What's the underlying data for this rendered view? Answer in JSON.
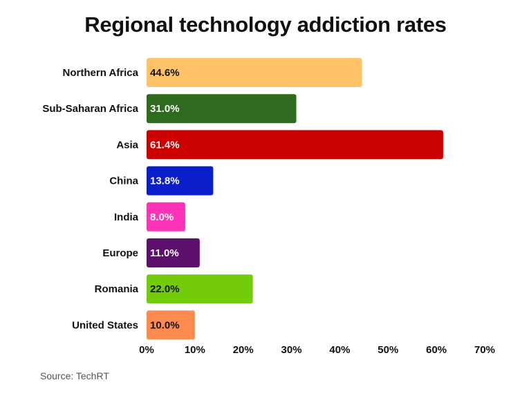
{
  "chart_data": {
    "type": "bar",
    "orientation": "horizontal",
    "title": "Regional technology addiction rates",
    "xlabel": "",
    "ylabel": "",
    "xlim": [
      0,
      70
    ],
    "ticks": [
      0,
      10,
      20,
      30,
      40,
      50,
      60,
      70
    ],
    "tick_labels": [
      "0%",
      "10%",
      "20%",
      "30%",
      "40%",
      "50%",
      "60%",
      "70%"
    ],
    "grid": false,
    "categories": [
      "Northern Africa",
      "Sub-Saharan Africa",
      "Asia",
      "China",
      "India",
      "Europe",
      "Romania",
      "United States"
    ],
    "values": [
      44.6,
      31.0,
      61.4,
      13.8,
      8.0,
      11.0,
      22.0,
      10.0
    ],
    "value_labels": [
      "44.6%",
      "31.0%",
      "61.4%",
      "13.8%",
      "8.0%",
      "11.0%",
      "22.0%",
      "10.0%"
    ],
    "colors": [
      "#FFC266",
      "#2E6B1F",
      "#CC0000",
      "#0A1FCC",
      "#FF33B8",
      "#5C0F6B",
      "#73CC0A",
      "#FF8A4D"
    ],
    "label_colors": [
      "#111111",
      "#ffffff",
      "#ffffff",
      "#ffffff",
      "#ffffff",
      "#ffffff",
      "#111111",
      "#111111"
    ]
  },
  "source": "Source: TechRT"
}
